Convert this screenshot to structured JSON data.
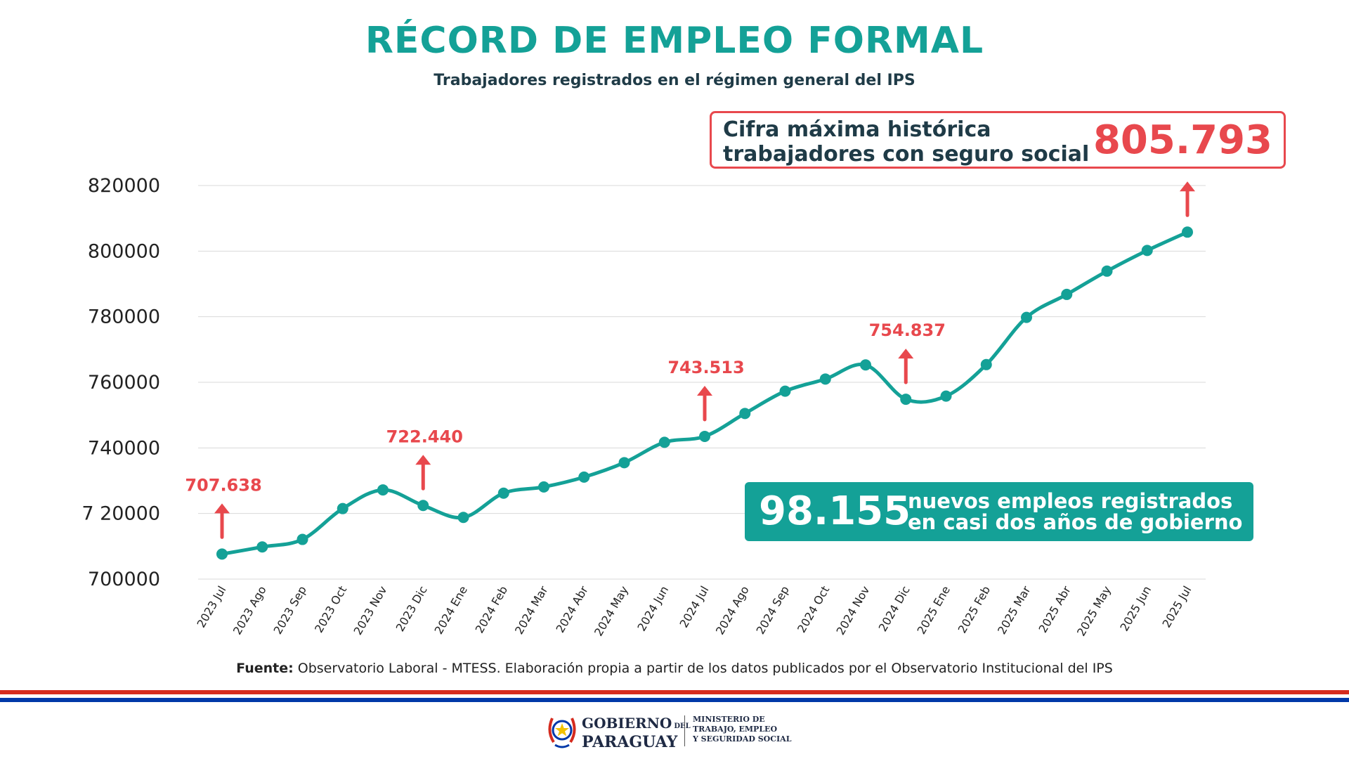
{
  "header": {
    "title": "RÉCORD DE EMPLEO FORMAL",
    "subtitle": "Trabajadores registrados en el régimen general del IPS"
  },
  "record_box": {
    "line1": "Cifra máxima histórica",
    "line2": "trabajadores con seguro social",
    "value": "805.793"
  },
  "jobs_box": {
    "value": "98.155",
    "line1": "nuevos empleos registrados",
    "line2": "en casi dos años de gobierno"
  },
  "source": {
    "label": "Fuente:",
    "text": " Observatorio Laboral - MTESS. Elaboración propia a partir de los datos publicados por el Observatorio Institucional del IPS"
  },
  "footer": {
    "gov_line1": "GOBIERNO",
    "gov_del": "DEL",
    "gov_line2": "PARAGUAY",
    "ministry_line1": "MINISTERIO DE",
    "ministry_line2": "TRABAJO, EMPLEO",
    "ministry_line3": "Y SEGURIDAD SOCIAL"
  },
  "colors": {
    "line": "#14a197",
    "accent_red": "#e8484d",
    "text_dark": "#1f3b47",
    "grid": "#d9d9d9",
    "flag_red": "#d52b1e",
    "flag_blue": "#0038a8"
  },
  "chart_data": {
    "type": "line",
    "title": "RÉCORD DE EMPLEO FORMAL",
    "xlabel": "",
    "ylabel": "",
    "ylim": [
      700000,
      820000
    ],
    "yticks": [
      700000,
      720000,
      740000,
      760000,
      780000,
      800000,
      820000
    ],
    "ytick_labels": [
      "700000",
      "7 20000",
      "740000",
      "760000",
      "780000",
      "800000",
      "820000"
    ],
    "grid": true,
    "categories": [
      "2023 Jul",
      "2023 Ago",
      "2023 Sep",
      "2023 Oct",
      "2023 Nov",
      "2023 Dic",
      "2024 Ene",
      "2024 Feb",
      "2024 Mar",
      "2024 Abr",
      "2024 May",
      "2024 Jun",
      "2024 Jul",
      "2024 Ago",
      "2024 Sep",
      "2024 Oct",
      "2024 Nov",
      "2024 Dic",
      "2025 Ene",
      "2025 Feb",
      "2025 Mar",
      "2025 Abr",
      "2025 May",
      "2025 Jun",
      "2025 Jul"
    ],
    "series": [
      {
        "values": [
          707638,
          709800,
          712100,
          721500,
          727200,
          722440,
          718800,
          726200,
          728100,
          731100,
          735500,
          741700,
          743513,
          750500,
          757300,
          761000,
          765300,
          754837,
          755800,
          765400,
          779800,
          786800,
          793900,
          800200,
          805793
        ]
      }
    ],
    "annotations": [
      {
        "index": 0,
        "text": "707.638"
      },
      {
        "index": 5,
        "text": "722.440"
      },
      {
        "index": 12,
        "text": "743.513"
      },
      {
        "index": 17,
        "text": "754.837"
      },
      {
        "index": 24,
        "text": ""
      }
    ]
  }
}
